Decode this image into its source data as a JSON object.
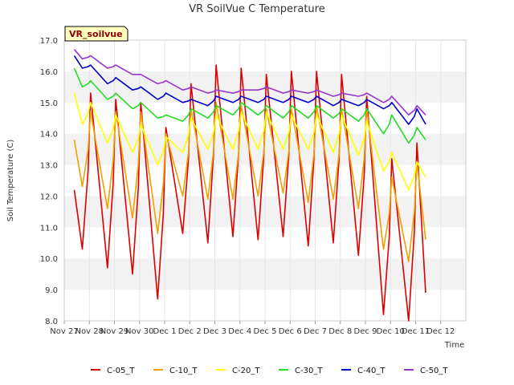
{
  "chart_data": {
    "type": "line",
    "title": "VR SoilVue C Temperature",
    "xlabel": "Time",
    "ylabel": "Soil Temperature (C)",
    "badge": "VR_soilvue",
    "ylim": [
      8.0,
      17.0
    ],
    "yticks": [
      "8.0",
      "9.0",
      "10.0",
      "11.0",
      "12.0",
      "13.0",
      "14.0",
      "15.0",
      "16.0",
      "17.0"
    ],
    "xlim": [
      0,
      16
    ],
    "xtick_labels": [
      "Nov 27",
      "Nov 28",
      "Nov 29",
      "Nov 30",
      "Dec 1",
      "Dec 2",
      "Dec 3",
      "Dec 4",
      "Dec 5",
      "Dec 6",
      "Dec 7",
      "Dec 8",
      "Dec 9",
      "Dec 10",
      "Dec 11",
      "Dec 12"
    ],
    "grid": true,
    "legend_position": "bottom",
    "series": [
      {
        "name": "C-05_T",
        "color": "#dd0000",
        "peaks": [
          15.3,
          15.1,
          15.0,
          14.2,
          15.6,
          16.2,
          16.1,
          15.9,
          16.0,
          16.0,
          15.9,
          15.2,
          13.2,
          13.7
        ],
        "mins": [
          10.3,
          9.7,
          9.5,
          8.7,
          10.8,
          10.5,
          10.7,
          10.6,
          10.7,
          10.4,
          10.5,
          10.1,
          8.2,
          8.0
        ],
        "start": 12.2,
        "end": 8.9
      },
      {
        "name": "C-10_T",
        "color": "#f0a000",
        "peaks": [
          14.7,
          14.7,
          14.7,
          14.0,
          14.8,
          15.0,
          14.9,
          14.8,
          14.8,
          14.9,
          14.8,
          14.8,
          12.6,
          13.1
        ],
        "mins": [
          12.3,
          11.6,
          11.3,
          10.8,
          12.0,
          11.9,
          11.9,
          12.0,
          12.1,
          11.8,
          11.9,
          11.6,
          10.3,
          9.9
        ],
        "start": 13.8,
        "end": 10.6
      },
      {
        "name": "C-20_T",
        "color": "#ffff00",
        "peaks": [
          15.0,
          14.6,
          14.3,
          13.9,
          14.5,
          14.6,
          14.7,
          14.7,
          14.6,
          14.6,
          14.6,
          14.4,
          13.4,
          13.1
        ],
        "mins": [
          14.3,
          13.7,
          13.4,
          13.0,
          13.4,
          13.5,
          13.5,
          13.5,
          13.5,
          13.5,
          13.4,
          13.3,
          12.8,
          12.2
        ],
        "start": 15.3,
        "end": 12.6
      },
      {
        "name": "C-30_T",
        "color": "#22dd22",
        "peaks": [
          15.7,
          15.3,
          15.0,
          14.6,
          14.8,
          14.9,
          15.0,
          14.9,
          14.9,
          14.9,
          14.8,
          14.8,
          14.6,
          14.2
        ],
        "mins": [
          15.5,
          15.1,
          14.8,
          14.5,
          14.4,
          14.5,
          14.6,
          14.6,
          14.5,
          14.5,
          14.5,
          14.4,
          14.0,
          13.7
        ],
        "start": 16.1,
        "end": 13.8
      },
      {
        "name": "C-40_T",
        "color": "#0000cc",
        "peaks": [
          16.2,
          15.8,
          15.5,
          15.3,
          15.1,
          15.2,
          15.2,
          15.2,
          15.2,
          15.2,
          15.1,
          15.1,
          15.0,
          14.8
        ],
        "mins": [
          16.1,
          15.6,
          15.4,
          15.1,
          15.0,
          14.9,
          15.0,
          15.0,
          15.0,
          15.0,
          14.9,
          14.9,
          14.8,
          14.3
        ],
        "start": 16.5,
        "end": 14.3
      },
      {
        "name": "C-50_T",
        "color": "#9933cc",
        "peaks": [
          16.5,
          16.2,
          15.9,
          15.7,
          15.5,
          15.4,
          15.4,
          15.5,
          15.4,
          15.4,
          15.3,
          15.3,
          15.2,
          14.9
        ],
        "mins": [
          16.4,
          16.1,
          15.9,
          15.6,
          15.4,
          15.3,
          15.3,
          15.4,
          15.3,
          15.3,
          15.2,
          15.2,
          15.0,
          14.6
        ],
        "start": 16.7,
        "end": 14.6
      }
    ]
  }
}
